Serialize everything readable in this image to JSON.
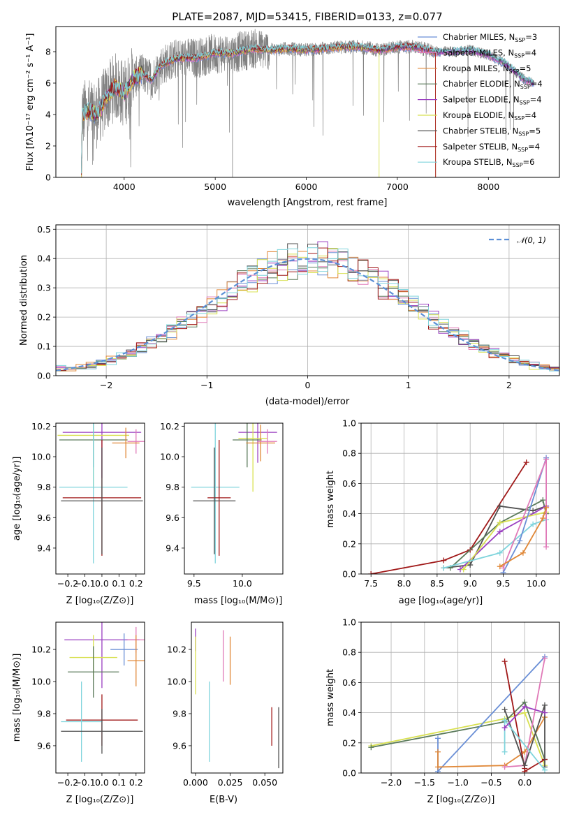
{
  "figure": {
    "title": "PLATE=2087, MJD=53415, FIBERID=0133, z=0.077"
  },
  "models": [
    {
      "name": "Chabrier MILES",
      "nssp": "3",
      "color": "#6a8fd6"
    },
    {
      "name": "Salpeter MILES",
      "nssp": "4",
      "color": "#e07ab8"
    },
    {
      "name": "Kroupa MILES",
      "nssp": "5",
      "color": "#e08838"
    },
    {
      "name": "Chabrier ELODIE",
      "nssp": "4",
      "color": "#5a7a5a"
    },
    {
      "name": "Salpeter ELODIE",
      "nssp": "4",
      "color": "#9a3fc0"
    },
    {
      "name": "Kroupa ELODIE",
      "nssp": "4",
      "color": "#d8e050"
    },
    {
      "name": "Chabrier STELIB",
      "nssp": "5",
      "color": "#505050"
    },
    {
      "name": "Salpeter STELIB",
      "nssp": "4",
      "color": "#a01818"
    },
    {
      "name": "Kroupa STELIB",
      "nssp": "6",
      "color": "#7fd4dc"
    }
  ],
  "chart_data": [
    {
      "id": "spectrum",
      "type": "line",
      "xlabel": "wavelength [Angstrom, rest frame]",
      "ylabel": "Flux [f_λ10^-17 erg cm^-2 s^-1 A^-1]",
      "xlim": [
        3250,
        8780
      ],
      "ylim": [
        0,
        9.6
      ],
      "xticks": [
        4000,
        5000,
        6000,
        7000,
        8000
      ],
      "yticks": [
        0,
        2,
        4,
        6,
        8
      ],
      "data_color": "#808080",
      "model_profile": [
        [
          3530,
          0
        ],
        [
          3540,
          4.0
        ],
        [
          3600,
          4.2
        ],
        [
          3700,
          4.0
        ],
        [
          3800,
          5.0
        ],
        [
          3900,
          5.8
        ],
        [
          4000,
          5.3
        ],
        [
          4100,
          6.3
        ],
        [
          4200,
          6.6
        ],
        [
          4300,
          6.2
        ],
        [
          4400,
          7.1
        ],
        [
          4500,
          7.4
        ],
        [
          4600,
          7.6
        ],
        [
          4800,
          7.6
        ],
        [
          5000,
          7.9
        ],
        [
          5200,
          7.9
        ],
        [
          5400,
          8.2
        ],
        [
          5600,
          8.1
        ],
        [
          5800,
          8.2
        ],
        [
          6000,
          8.1
        ],
        [
          6200,
          8.2
        ],
        [
          6400,
          8.3
        ],
        [
          6600,
          8.3
        ],
        [
          6800,
          8.1
        ],
        [
          7000,
          8.3
        ],
        [
          7200,
          8.3
        ],
        [
          7400,
          8.0
        ],
        [
          7600,
          8.0
        ],
        [
          7800,
          8.1
        ],
        [
          8000,
          7.8
        ],
        [
          8200,
          7.2
        ],
        [
          8400,
          6.2
        ],
        [
          8500,
          6.0
        ]
      ],
      "model_cutoffs": [
        {
          "model": "Kroupa ELODIE",
          "end": 6800
        },
        {
          "model": "Kroupa MILES",
          "end": 7420
        },
        {
          "model": "Salpeter STELIB",
          "end": 7420
        }
      ]
    },
    {
      "id": "residuals",
      "type": "histogram",
      "xlabel": "(data-model)/error",
      "ylabel": "Normed distribution",
      "xlim": [
        -2.5,
        2.5
      ],
      "ylim": [
        0,
        0.515
      ],
      "xticks": [
        -2,
        -1,
        0,
        1,
        2
      ],
      "yticks": [
        0.0,
        0.1,
        0.2,
        0.3,
        0.4,
        0.5
      ],
      "grid": true,
      "normal_label": "𝒩(0, 1)",
      "normal_color": "#5b8fd6",
      "legend_position": "top-right",
      "bin_width": 0.1
    },
    {
      "id": "age_vs_Z",
      "type": "scatter",
      "xlabel": "Z [log10(Z/Z⊙)]",
      "ylabel": "age  [log10(age/yr)]",
      "xlim": [
        -0.27,
        0.25
      ],
      "ylim": [
        9.23,
        10.22
      ],
      "xticks": [
        -0.2,
        -0.1,
        0.0,
        0.1,
        0.2
      ],
      "yticks": [
        9.4,
        9.6,
        9.8,
        10.0,
        10.2
      ],
      "points": [
        {
          "model": "Salpeter ELODIE",
          "x": 0.0,
          "y": 10.16,
          "xerr": 0.23,
          "yerr": 0.3
        },
        {
          "model": "Kroupa ELODIE",
          "x": -0.05,
          "y": 10.14,
          "xerr": 0.21,
          "yerr": 0.35
        },
        {
          "model": "Chabrier ELODIE",
          "x": -0.05,
          "y": 10.11,
          "xerr": 0.2,
          "yerr": 0.18
        },
        {
          "model": "Salpeter MILES",
          "x": 0.2,
          "y": 10.1,
          "xerr": 0.05,
          "yerr": 0.08
        },
        {
          "model": "Kroupa MILES",
          "x": 0.14,
          "y": 10.09,
          "xerr": 0.08,
          "yerr": 0.1
        },
        {
          "model": "Kroupa STELIB",
          "x": -0.05,
          "y": 9.8,
          "xerr": 0.2,
          "yerr": 0.5
        },
        {
          "model": "Salpeter STELIB",
          "x": 0.0,
          "y": 9.73,
          "xerr": 0.23,
          "yerr": 0.38
        },
        {
          "model": "Chabrier STELIB",
          "x": 0.0,
          "y": 9.71,
          "xerr": 0.24,
          "yerr": 0.35
        }
      ]
    },
    {
      "id": "age_vs_mass",
      "type": "scatter",
      "xlabel": "mass [log10(M/M⊙)]",
      "ylabel": "",
      "xlim": [
        9.4,
        10.42
      ],
      "ylim": [
        9.23,
        10.22
      ],
      "xticks": [
        9.5,
        10.0
      ],
      "yticks": [
        9.4,
        9.6,
        9.8,
        10.0,
        10.2
      ],
      "points": [
        {
          "model": "Salpeter ELODIE",
          "x": 10.16,
          "y": 10.16,
          "xerr": 0.2,
          "yerr": 0.2
        },
        {
          "model": "Kroupa ELODIE",
          "x": 10.11,
          "y": 10.12,
          "xerr": 0.15,
          "yerr": 0.35
        },
        {
          "model": "Chabrier ELODIE",
          "x": 10.05,
          "y": 10.11,
          "xerr": 0.15,
          "yerr": 0.18
        },
        {
          "model": "Kroupa MILES",
          "x": 10.19,
          "y": 10.09,
          "xerr": 0.15,
          "yerr": 0.12
        },
        {
          "model": "Salpeter MILES",
          "x": 10.26,
          "y": 10.1,
          "xerr": 0.1,
          "yerr": 0.08
        },
        {
          "model": "Kroupa STELIB",
          "x": 9.72,
          "y": 9.8,
          "xerr": 0.25,
          "yerr": 0.5
        },
        {
          "model": "Salpeter STELIB",
          "x": 9.76,
          "y": 9.73,
          "xerr": 0.12,
          "yerr": 0.38
        },
        {
          "model": "Chabrier STELIB",
          "x": 9.71,
          "y": 9.71,
          "xerr": 0.22,
          "yerr": 0.35
        }
      ]
    },
    {
      "id": "weight_vs_age",
      "type": "line",
      "xlabel": "age  [log10(age/yr)]",
      "ylabel": "mass weight",
      "xlim": [
        7.35,
        10.35
      ],
      "ylim": [
        0,
        1.0
      ],
      "xticks": [
        7.5,
        8.0,
        8.5,
        9.0,
        9.5,
        10.0
      ],
      "yticks": [
        0.0,
        0.2,
        0.4,
        0.6,
        0.8,
        1.0
      ],
      "grid": true,
      "series": [
        {
          "model": "Salpeter STELIB",
          "x": [
            7.5,
            8.6,
            9.0,
            9.85
          ],
          "y": [
            0.0,
            0.09,
            0.16,
            0.74
          ]
        },
        {
          "model": "Chabrier STELIB",
          "x": [
            8.6,
            9.0,
            9.45,
            9.95,
            10.15
          ],
          "y": [
            0.04,
            0.06,
            0.45,
            0.42,
            0.45
          ]
        },
        {
          "model": "Chabrier ELODIE",
          "x": [
            8.7,
            9.45,
            10.1,
            10.15
          ],
          "y": [
            0.04,
            0.34,
            0.49,
            0.4
          ]
        },
        {
          "model": "Salpeter ELODIE",
          "x": [
            8.85,
            9.45,
            10.15
          ],
          "y": [
            0.03,
            0.28,
            0.45
          ]
        },
        {
          "model": "Kroupa ELODIE",
          "x": [
            8.9,
            9.45,
            10.15
          ],
          "y": [
            0.03,
            0.34,
            0.41
          ]
        },
        {
          "model": "Kroupa STELIB",
          "x": [
            8.6,
            9.45,
            9.95,
            10.15
          ],
          "y": [
            0.04,
            0.14,
            0.33,
            0.36
          ]
        },
        {
          "model": "Chabrier MILES",
          "x": [
            9.5,
            9.75,
            10.15
          ],
          "y": [
            0.01,
            0.22,
            0.77
          ]
        },
        {
          "model": "Salpeter MILES",
          "x": [
            9.5,
            10.15,
            10.15
          ],
          "y": [
            0.04,
            0.76,
            0.18
          ]
        },
        {
          "model": "Kroupa MILES",
          "x": [
            9.45,
            9.8,
            10.1,
            10.15
          ],
          "y": [
            0.05,
            0.14,
            0.37,
            0.44
          ]
        }
      ]
    },
    {
      "id": "mass_vs_Z",
      "type": "scatter",
      "xlabel": "Z [log10(Z/Z⊙)]",
      "ylabel": "mass [log10(M/M⊙)]",
      "xlim": [
        -0.27,
        0.25
      ],
      "ylim": [
        9.43,
        10.37
      ],
      "xticks": [
        -0.2,
        -0.1,
        0.0,
        0.1,
        0.2
      ],
      "yticks": [
        9.6,
        9.8,
        10.0,
        10.2
      ],
      "points": [
        {
          "model": "Salpeter ELODIE",
          "x": 0.0,
          "y": 10.26,
          "xerr": 0.22,
          "yerr": 0.3
        },
        {
          "model": "Salpeter MILES",
          "x": 0.2,
          "y": 10.26,
          "xerr": 0.05,
          "yerr": 0.08
        },
        {
          "model": "Chabrier MILES",
          "x": 0.13,
          "y": 10.2,
          "xerr": 0.08,
          "yerr": 0.1
        },
        {
          "model": "Kroupa ELODIE",
          "x": -0.05,
          "y": 10.15,
          "xerr": 0.14,
          "yerr": 0.14
        },
        {
          "model": "Kroupa MILES",
          "x": 0.2,
          "y": 10.13,
          "xerr": 0.05,
          "yerr": 0.16
        },
        {
          "model": "Chabrier ELODIE",
          "x": -0.05,
          "y": 10.06,
          "xerr": 0.15,
          "yerr": 0.16
        },
        {
          "model": "Salpeter STELIB",
          "x": 0.0,
          "y": 9.76,
          "xerr": 0.21,
          "yerr": 0.16
        },
        {
          "model": "Kroupa STELIB",
          "x": -0.12,
          "y": 9.75,
          "xerr": 0.12,
          "yerr": 0.25
        },
        {
          "model": "Chabrier STELIB",
          "x": 0.0,
          "y": 9.69,
          "xerr": 0.24,
          "yerr": 0.14
        }
      ]
    },
    {
      "id": "mass_vs_ebv",
      "type": "scatter",
      "xlabel": "E(B-V)",
      "ylabel": "",
      "xlim": [
        -0.003,
        0.063
      ],
      "ylim": [
        9.43,
        10.37
      ],
      "xticks": [
        0.0,
        0.025,
        0.05
      ],
      "yticks": [
        9.6,
        9.8,
        10.0,
        10.2
      ],
      "points": [
        {
          "model": "Salpeter ELODIE",
          "x": 0.0,
          "y": 10.26,
          "yerr": 0.07
        },
        {
          "model": "Kroupa ELODIE",
          "x": 0.0,
          "y": 10.1,
          "yerr": 0.18
        },
        {
          "model": "Salpeter MILES",
          "x": 0.02,
          "y": 10.16,
          "yerr": 0.16
        },
        {
          "model": "Kroupa MILES",
          "x": 0.025,
          "y": 10.13,
          "yerr": 0.15
        },
        {
          "model": "Kroupa STELIB",
          "x": 0.01,
          "y": 9.75,
          "yerr": 0.25
        },
        {
          "model": "Salpeter STELIB",
          "x": 0.055,
          "y": 9.72,
          "yerr": 0.12
        },
        {
          "model": "Chabrier STELIB",
          "x": 0.06,
          "y": 9.65,
          "yerr": 0.19
        }
      ]
    },
    {
      "id": "weight_vs_Z",
      "type": "line",
      "xlabel": "Z [log10(Z/Z⊙)]",
      "ylabel": "mass weight",
      "xlim": [
        -2.45,
        0.52
      ],
      "ylim": [
        0,
        1.0
      ],
      "xticks": [
        -2.0,
        -1.5,
        -1.0,
        -0.5,
        0.0
      ],
      "yticks": [
        0.0,
        0.2,
        0.4,
        0.6,
        0.8,
        1.0
      ],
      "grid": true,
      "series": [
        {
          "model": "Kroupa ELODIE",
          "x": [
            -2.3,
            -0.3,
            0.0,
            0.3
          ],
          "y": [
            0.18,
            0.36,
            0.4,
            0.05
          ]
        },
        {
          "model": "Chabrier ELODIE",
          "x": [
            -2.3,
            -0.3,
            0.0,
            0.3
          ],
          "y": [
            0.17,
            0.34,
            0.47,
            0.09
          ]
        },
        {
          "model": "Chabrier MILES",
          "x": [
            -1.3,
            -1.3,
            0.3
          ],
          "y": [
            0.23,
            0.01,
            0.77
          ]
        },
        {
          "model": "Kroupa MILES",
          "x": [
            -1.3,
            -1.3,
            -0.3,
            0.0,
            0.3
          ],
          "y": [
            0.14,
            0.04,
            0.05,
            0.14,
            0.37
          ]
        },
        {
          "model": "Salpeter MILES",
          "x": [
            -0.3,
            0.0,
            0.3
          ],
          "y": [
            0.04,
            0.05,
            0.76
          ]
        },
        {
          "model": "Salpeter STELIB",
          "x": [
            -0.3,
            0.0,
            0.0,
            0.3
          ],
          "y": [
            0.74,
            0.03,
            0.01,
            0.09
          ]
        },
        {
          "model": "Chabrier STELIB",
          "x": [
            -0.3,
            0.0,
            0.3,
            0.3
          ],
          "y": [
            0.42,
            0.05,
            0.45,
            0.04
          ]
        },
        {
          "model": "Kroupa STELIB",
          "x": [
            -0.3,
            -0.3,
            0.3
          ],
          "y": [
            0.14,
            0.35,
            0.02
          ]
        },
        {
          "model": "Salpeter ELODIE",
          "x": [
            -0.3,
            0.0,
            0.3
          ],
          "y": [
            0.3,
            0.44,
            0.4
          ]
        }
      ]
    }
  ]
}
